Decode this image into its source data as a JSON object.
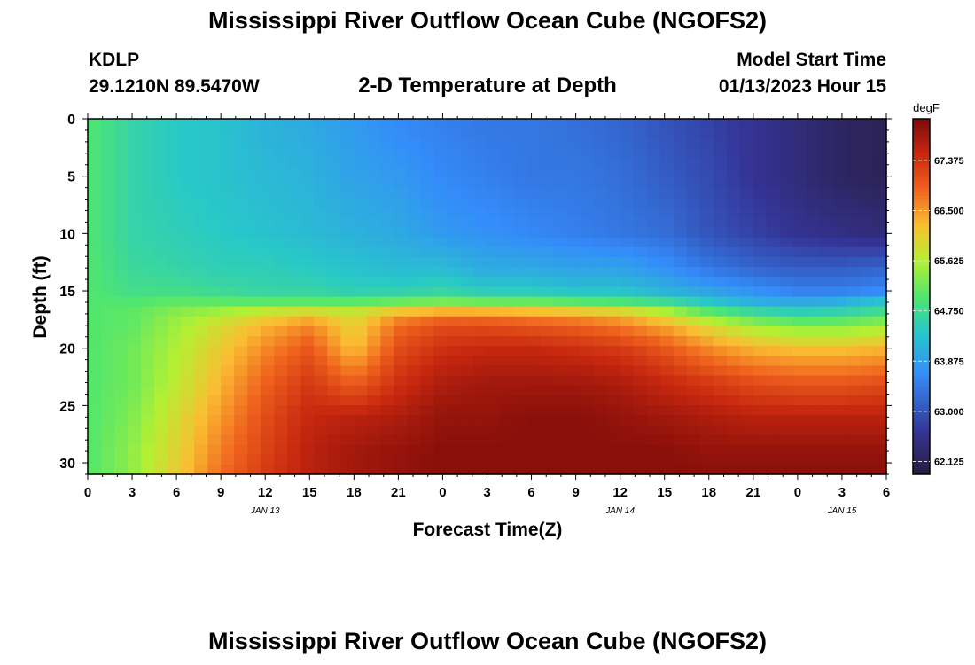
{
  "header": {
    "title": "Mississippi River Outflow Ocean Cube (NGOFS2)",
    "station_id": "KDLP",
    "station_coords": "29.1210N  89.5470W",
    "subtitle": "2-D Temperature at Depth",
    "model_start_label": "Model Start Time",
    "model_start_value": "01/13/2023 Hour 15"
  },
  "footer": {
    "title": "Mississippi River Outflow Ocean Cube (NGOFS2)"
  },
  "chart_data": {
    "type": "heatmap",
    "title": "2-D Temperature at Depth",
    "xlabel": "Forecast Time(Z)",
    "ylabel": "Depth (ft)",
    "x_tick_labels": [
      "0",
      "3",
      "6",
      "9",
      "12",
      "15",
      "18",
      "21",
      "0",
      "3",
      "6",
      "9",
      "12",
      "15",
      "18",
      "21",
      "0",
      "3",
      "6"
    ],
    "x_date_labels": [
      {
        "label": "JAN 13",
        "hour": 12
      },
      {
        "label": "JAN 14",
        "hour": 36
      },
      {
        "label": "JAN 15",
        "hour": 51
      }
    ],
    "x_range_hours": [
      0,
      54
    ],
    "y_tick_labels": [
      "0",
      "5",
      "10",
      "15",
      "20",
      "25",
      "30"
    ],
    "ylim": [
      0,
      31
    ],
    "y_inverted": true,
    "colorbar": {
      "unit": "degF",
      "range": [
        61.9,
        68.1
      ],
      "tick_labels": [
        "67.375",
        "66.500",
        "65.625",
        "64.750",
        "63.875",
        "63.000",
        "62.125"
      ],
      "tick_values": [
        67.375,
        66.5,
        65.625,
        64.75,
        63.875,
        63.0,
        62.125
      ]
    },
    "grid": false,
    "data_description_hours": [
      0,
      3,
      6,
      9,
      12,
      15,
      18,
      21,
      24,
      27,
      30,
      33,
      36,
      39,
      42,
      45,
      48,
      51,
      54
    ],
    "data_depths_ft": [
      0,
      5,
      10,
      13,
      15,
      16,
      17,
      18,
      20,
      23,
      26,
      29,
      31
    ],
    "values": [
      [
        65.0,
        64.6,
        64.4,
        64.3,
        64.1,
        64.0,
        63.8,
        63.6,
        63.5,
        63.4,
        63.4,
        63.3,
        63.2,
        63.0,
        62.8,
        62.6,
        62.4,
        62.2,
        62.1
      ],
      [
        65.0,
        64.6,
        64.4,
        64.3,
        64.2,
        64.1,
        63.9,
        63.8,
        63.6,
        63.5,
        63.4,
        63.4,
        63.3,
        63.1,
        62.9,
        62.6,
        62.4,
        62.2,
        62.1
      ],
      [
        65.0,
        64.6,
        64.5,
        64.4,
        64.3,
        64.2,
        64.1,
        64.0,
        63.8,
        63.7,
        63.6,
        63.5,
        63.4,
        63.3,
        63.0,
        62.8,
        62.6,
        62.5,
        62.4
      ],
      [
        65.0,
        64.7,
        64.6,
        64.5,
        64.5,
        64.4,
        64.3,
        64.2,
        64.2,
        64.0,
        64.0,
        63.9,
        63.9,
        63.7,
        63.4,
        63.2,
        63.1,
        63.1,
        63.2
      ],
      [
        65.0,
        64.8,
        64.8,
        64.7,
        64.6,
        64.6,
        64.5,
        64.5,
        64.6,
        64.4,
        64.4,
        64.3,
        64.3,
        64.1,
        63.9,
        63.7,
        63.5,
        63.5,
        63.6
      ],
      [
        65.0,
        65.0,
        65.1,
        65.1,
        65.1,
        65.1,
        65.1,
        65.2,
        65.3,
        65.2,
        65.2,
        65.1,
        65.0,
        64.8,
        64.4,
        64.1,
        64.0,
        64.1,
        64.4
      ],
      [
        65.0,
        65.1,
        65.4,
        65.6,
        65.9,
        66.1,
        65.9,
        66.4,
        66.6,
        66.6,
        66.5,
        66.4,
        66.2,
        65.8,
        65.2,
        64.8,
        64.6,
        64.7,
        64.9
      ],
      [
        65.0,
        65.1,
        65.5,
        65.9,
        66.3,
        66.6,
        66.0,
        66.8,
        67.1,
        67.1,
        67.0,
        66.9,
        66.7,
        66.4,
        65.9,
        65.5,
        65.3,
        65.3,
        65.5
      ],
      [
        65.0,
        65.2,
        65.6,
        66.1,
        66.6,
        67.0,
        66.2,
        67.1,
        67.4,
        67.5,
        67.5,
        67.4,
        67.3,
        67.0,
        66.6,
        66.3,
        66.2,
        66.2,
        66.3
      ],
      [
        65.0,
        65.2,
        65.7,
        66.3,
        66.9,
        67.3,
        66.9,
        67.4,
        67.7,
        67.8,
        67.8,
        67.8,
        67.7,
        67.5,
        67.3,
        67.1,
        67.0,
        67.0,
        67.1
      ],
      [
        65.0,
        65.3,
        65.9,
        66.5,
        67.1,
        67.5,
        67.6,
        67.7,
        67.9,
        67.9,
        68.0,
        68.0,
        67.9,
        67.8,
        67.7,
        67.6,
        67.6,
        67.6,
        67.6
      ],
      [
        65.0,
        65.4,
        66.0,
        66.7,
        67.2,
        67.6,
        67.8,
        67.9,
        68.0,
        68.0,
        68.0,
        68.0,
        68.0,
        68.0,
        67.9,
        67.9,
        67.9,
        67.9,
        67.9
      ],
      [
        65.0,
        65.4,
        66.1,
        66.8,
        67.3,
        67.6,
        67.8,
        67.9,
        68.0,
        68.0,
        68.0,
        68.0,
        68.0,
        68.0,
        68.0,
        68.0,
        68.0,
        68.0,
        68.0
      ]
    ]
  }
}
